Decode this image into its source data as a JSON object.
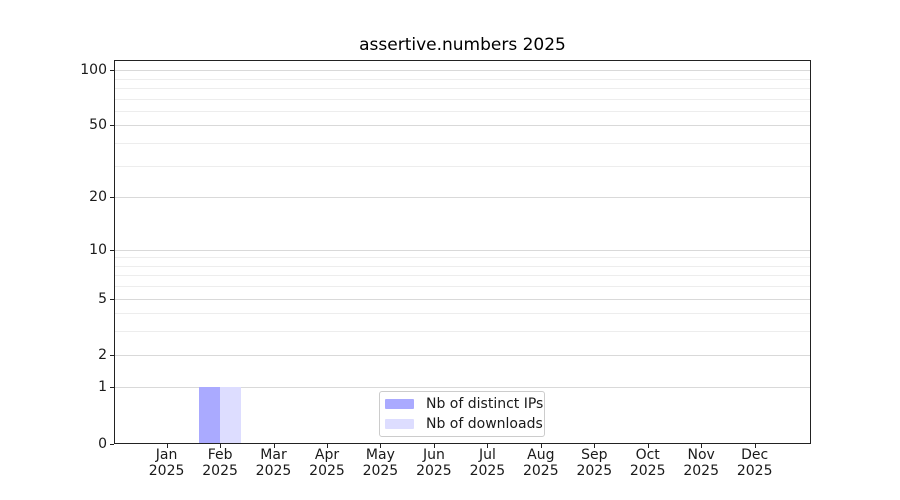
{
  "figure": {
    "title": "assertive.numbers 2025"
  },
  "chart_data": {
    "type": "bar",
    "title": "assertive.numbers 2025",
    "x": [
      "Jan 2025",
      "Feb 2025",
      "Mar 2025",
      "Apr 2025",
      "May 2025",
      "Jun 2025",
      "Jul 2025",
      "Aug 2025",
      "Sep 2025",
      "Oct 2025",
      "Nov 2025",
      "Dec 2025"
    ],
    "month_labels": [
      "Jan",
      "Feb",
      "Mar",
      "Apr",
      "May",
      "Jun",
      "Jul",
      "Aug",
      "Sep",
      "Oct",
      "Nov",
      "Dec"
    ],
    "year_label": "2025",
    "series": [
      {
        "name": "Nb of distinct IPs",
        "color": "#aaaaff",
        "values": [
          0,
          1,
          0,
          0,
          0,
          0,
          0,
          0,
          0,
          0,
          0,
          0
        ]
      },
      {
        "name": "Nb of downloads",
        "color": "#ddddff",
        "values": [
          0,
          1,
          0,
          0,
          0,
          0,
          0,
          0,
          0,
          0,
          0,
          0
        ]
      }
    ],
    "y_axis": {
      "scale": "log1p",
      "min": 0,
      "max": 112,
      "major_ticks": [
        100,
        50,
        20,
        10,
        5,
        2,
        1,
        0
      ],
      "minor_gridlines": [
        3,
        4,
        6,
        7,
        8,
        9,
        30,
        40,
        60,
        70,
        80,
        90
      ]
    },
    "grid": "horizontal-only",
    "legend_position": "inside-bottom-center",
    "colors": {
      "bar_distinct_ips": "#aaaaff",
      "bar_downloads": "#ddddff",
      "major_grid": "#d9d9d9",
      "minor_grid": "#ededed",
      "spine": "#222222",
      "text": "#1a1a1a"
    }
  },
  "legend": {
    "items": [
      {
        "label": "Nb of distinct IPs"
      },
      {
        "label": "Nb of downloads"
      }
    ]
  }
}
